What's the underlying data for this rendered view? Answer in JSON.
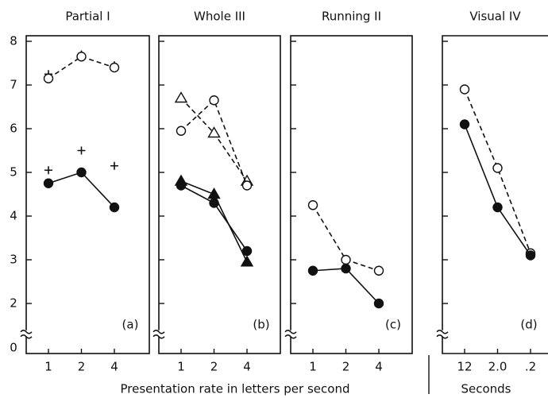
{
  "chart_data": [
    {
      "type": "line",
      "title": "Partial I",
      "panel_label": "(a)",
      "xlabel": "Presentation rate in letters per second",
      "categories": [
        "1",
        "2",
        "4"
      ],
      "ylim": [
        0,
        8
      ],
      "yticks": [
        0,
        2,
        3,
        4,
        5,
        6,
        7,
        8
      ],
      "axis_break": true,
      "series": [
        {
          "marker": "plus",
          "line": "none",
          "color": "#111",
          "values": [
            7.25,
            7.7,
            7.45
          ]
        },
        {
          "marker": "open-circle",
          "line": "dashed",
          "color": "#111",
          "values": [
            7.15,
            7.65,
            7.4
          ]
        },
        {
          "marker": "plus",
          "line": "none",
          "color": "#111",
          "values": [
            5.05,
            5.5,
            5.15
          ]
        },
        {
          "marker": "filled-circle",
          "line": "solid",
          "color": "#111",
          "values": [
            4.75,
            5.0,
            4.2
          ]
        }
      ]
    },
    {
      "type": "line",
      "title": "Whole III",
      "panel_label": "(b)",
      "categories": [
        "1",
        "2",
        "4"
      ],
      "ylim": [
        0,
        8
      ],
      "yticks": [
        0,
        2,
        3,
        4,
        5,
        6,
        7,
        8
      ],
      "axis_break": true,
      "series": [
        {
          "marker": "open-triangle",
          "line": "dashed",
          "color": "#111",
          "values": [
            6.7,
            5.9,
            4.8
          ]
        },
        {
          "marker": "open-circle",
          "line": "dashed",
          "color": "#111",
          "values": [
            5.95,
            6.65,
            4.7
          ]
        },
        {
          "marker": "filled-triangle",
          "line": "solid",
          "color": "#111",
          "values": [
            4.8,
            4.5,
            2.95
          ]
        },
        {
          "marker": "filled-circle",
          "line": "solid",
          "color": "#111",
          "values": [
            4.7,
            4.3,
            3.2
          ]
        }
      ]
    },
    {
      "type": "line",
      "title": "Running II",
      "panel_label": "(c)",
      "categories": [
        "1",
        "2",
        "4"
      ],
      "ylim": [
        0,
        8
      ],
      "yticks": [
        0,
        2,
        3,
        4,
        5,
        6,
        7,
        8
      ],
      "axis_break": true,
      "series": [
        {
          "marker": "open-circle",
          "line": "dashed",
          "color": "#111",
          "values": [
            4.25,
            3.0,
            2.75
          ]
        },
        {
          "marker": "filled-circle",
          "line": "solid",
          "color": "#111",
          "values": [
            2.75,
            2.8,
            2.0
          ]
        }
      ]
    },
    {
      "type": "line",
      "title": "Visual IV",
      "panel_label": "(d)",
      "xlabel": "Seconds",
      "categories": [
        "12",
        "2.0",
        ".2"
      ],
      "ylim": [
        0,
        8
      ],
      "yticks": [
        0,
        2,
        3,
        4,
        5,
        6,
        7,
        8
      ],
      "axis_break": true,
      "series": [
        {
          "marker": "open-circle",
          "line": "dashed",
          "color": "#111",
          "values": [
            6.9,
            5.1,
            3.15
          ]
        },
        {
          "marker": "filled-circle",
          "line": "solid",
          "color": "#111",
          "values": [
            6.1,
            4.2,
            3.1
          ]
        }
      ]
    }
  ]
}
